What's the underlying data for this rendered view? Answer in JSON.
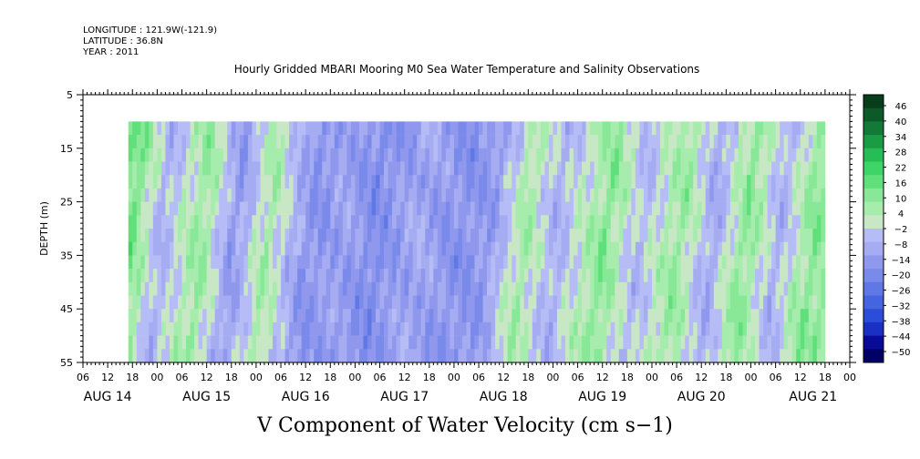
{
  "header": {
    "longitude": "LONGITUDE : 121.9W(-121.9)",
    "latitude": "LATITUDE : 36.8N",
    "year": "YEAR : 2011"
  },
  "chart_data": {
    "type": "heatmap",
    "title": "Hourly Gridded MBARI Mooring M0 Sea Water Temperature and Salinity Observations",
    "xlabel": "V Component of Water Velocity (cm s−1)",
    "ylabel": "DEPTH (m)",
    "y_ticks": [
      5,
      15,
      25,
      35,
      45,
      55
    ],
    "ylim": [
      5,
      55
    ],
    "y_inverted": true,
    "data_depth_range": [
      10,
      55
    ],
    "x_hour_ticks": [
      "06",
      "12",
      "18",
      "00",
      "06",
      "12",
      "18",
      "00",
      "06",
      "12",
      "18",
      "00",
      "06",
      "12",
      "18",
      "00",
      "06",
      "12",
      "18",
      "00",
      "06",
      "12",
      "18",
      "00",
      "06",
      "12",
      "18",
      "00",
      "06",
      "12",
      "18",
      "00"
    ],
    "x_date_labels": [
      "AUG 14",
      "AUG 15",
      "AUG 16",
      "AUG 17",
      "AUG 18",
      "AUG 19",
      "AUG 20",
      "AUG 21"
    ],
    "x_start_hour": 6,
    "x_hours_total": 186,
    "data_start_hour": 11,
    "data_end_hour": 180,
    "colorbar": {
      "labels": [
        "46",
        "40",
        "34",
        "28",
        "22",
        "16",
        "10",
        "4",
        "−2",
        "−8",
        "−14",
        "−20",
        "−26",
        "−32",
        "−38",
        "−44",
        "−50"
      ],
      "vmin": -50,
      "vmax": 50,
      "colors": [
        "#000066",
        "#0a0a99",
        "#1a2fc4",
        "#2b4ed8",
        "#4565e0",
        "#6078e6",
        "#7a8aeb",
        "#9098ee",
        "#a6acf2",
        "#b6bcf5",
        "#c8e7c4",
        "#a6ecad",
        "#88e897",
        "#5fe07a",
        "#3ed567",
        "#26bc56",
        "#1a9c45",
        "#127a36",
        "#0c5a28",
        "#083d1c"
      ]
    },
    "velocity_profile": {
      "hours": [
        11,
        18,
        28,
        36,
        44,
        54,
        62,
        70,
        80,
        90,
        98,
        106,
        114,
        126,
        134,
        144,
        152,
        160,
        168,
        176,
        180
      ],
      "values": [
        14,
        -6,
        10,
        -12,
        8,
        -14,
        -10,
        -16,
        -8,
        -14,
        -12,
        8,
        -6,
        12,
        -4,
        10,
        -8,
        12,
        -6,
        12,
        10
      ]
    }
  }
}
